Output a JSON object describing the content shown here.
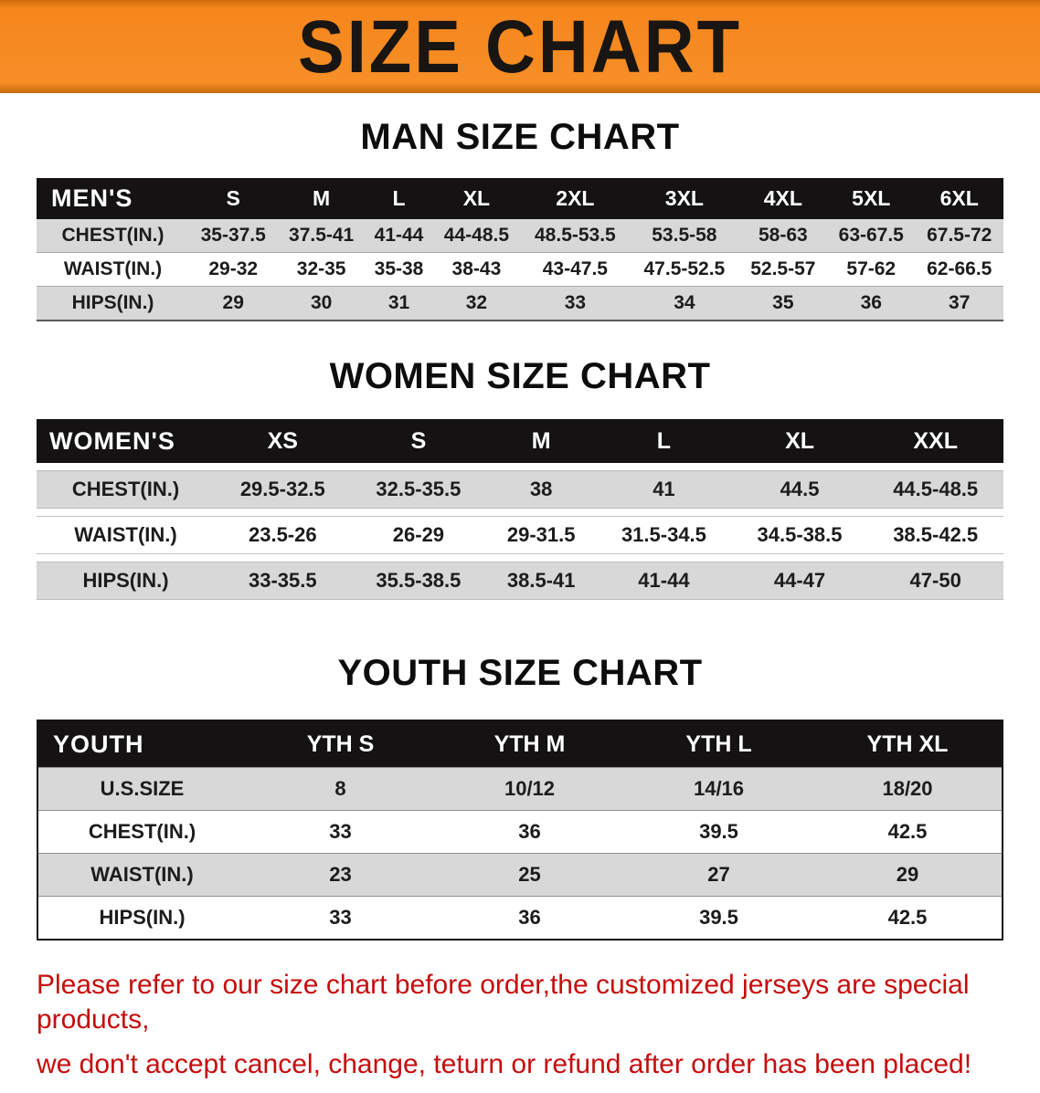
{
  "banner": {
    "title": "SIZE CHART",
    "bg_color": "#F5861C",
    "title_color": "#191512"
  },
  "men": {
    "heading": "MAN SIZE CHART",
    "table": {
      "header": [
        "MEN'S",
        "S",
        "M",
        "L",
        "XL",
        "2XL",
        "3XL",
        "4XL",
        "5XL",
        "6XL"
      ],
      "rows": [
        [
          "CHEST(IN.)",
          "35-37.5",
          "37.5-41",
          "41-44",
          "44-48.5",
          "48.5-53.5",
          "53.5-58",
          "58-63",
          "63-67.5",
          "67.5-72"
        ],
        [
          "WAIST(IN.)",
          "29-32",
          "32-35",
          "35-38",
          "38-43",
          "43-47.5",
          "47.5-52.5",
          "52.5-57",
          "57-62",
          "62-66.5"
        ],
        [
          "HIPS(IN.)",
          "29",
          "30",
          "31",
          "32",
          "33",
          "34",
          "35",
          "36",
          "37"
        ]
      ]
    }
  },
  "women": {
    "heading": "WOMEN SIZE CHART",
    "table": {
      "header": [
        "WOMEN'S",
        "XS",
        "S",
        "M",
        "L",
        "XL",
        "XXL"
      ],
      "rows": [
        [
          "CHEST(IN.)",
          "29.5-32.5",
          "32.5-35.5",
          "38",
          "41",
          "44.5",
          "44.5-48.5"
        ],
        [
          "WAIST(IN.)",
          "23.5-26",
          "26-29",
          "29-31.5",
          "31.5-34.5",
          "34.5-38.5",
          "38.5-42.5"
        ],
        [
          "HIPS(IN.)",
          "33-35.5",
          "35.5-38.5",
          "38.5-41",
          "41-44",
          "44-47",
          "47-50"
        ]
      ]
    }
  },
  "youth": {
    "heading": "YOUTH SIZE CHART",
    "table": {
      "header": [
        "YOUTH",
        "YTH S",
        "YTH M",
        "YTH L",
        "YTH XL"
      ],
      "rows": [
        [
          "U.S.SIZE",
          "8",
          "10/12",
          "14/16",
          "18/20"
        ],
        [
          "CHEST(IN.)",
          "33",
          "36",
          "39.5",
          "42.5"
        ],
        [
          "WAIST(IN.)",
          "23",
          "25",
          "27",
          "29"
        ],
        [
          "HIPS(IN.)",
          "33",
          "36",
          "39.5",
          "42.5"
        ]
      ]
    }
  },
  "footer": {
    "line1": "Please refer to our size chart before order,the customized jerseys are special products,",
    "line2": "we don't accept cancel, change, teturn or refund after order has been placed!",
    "text_color": "#C60C0C"
  },
  "colors": {
    "header_row_bg": "#141212",
    "stripe_row_bg": "#D8D8D8"
  }
}
